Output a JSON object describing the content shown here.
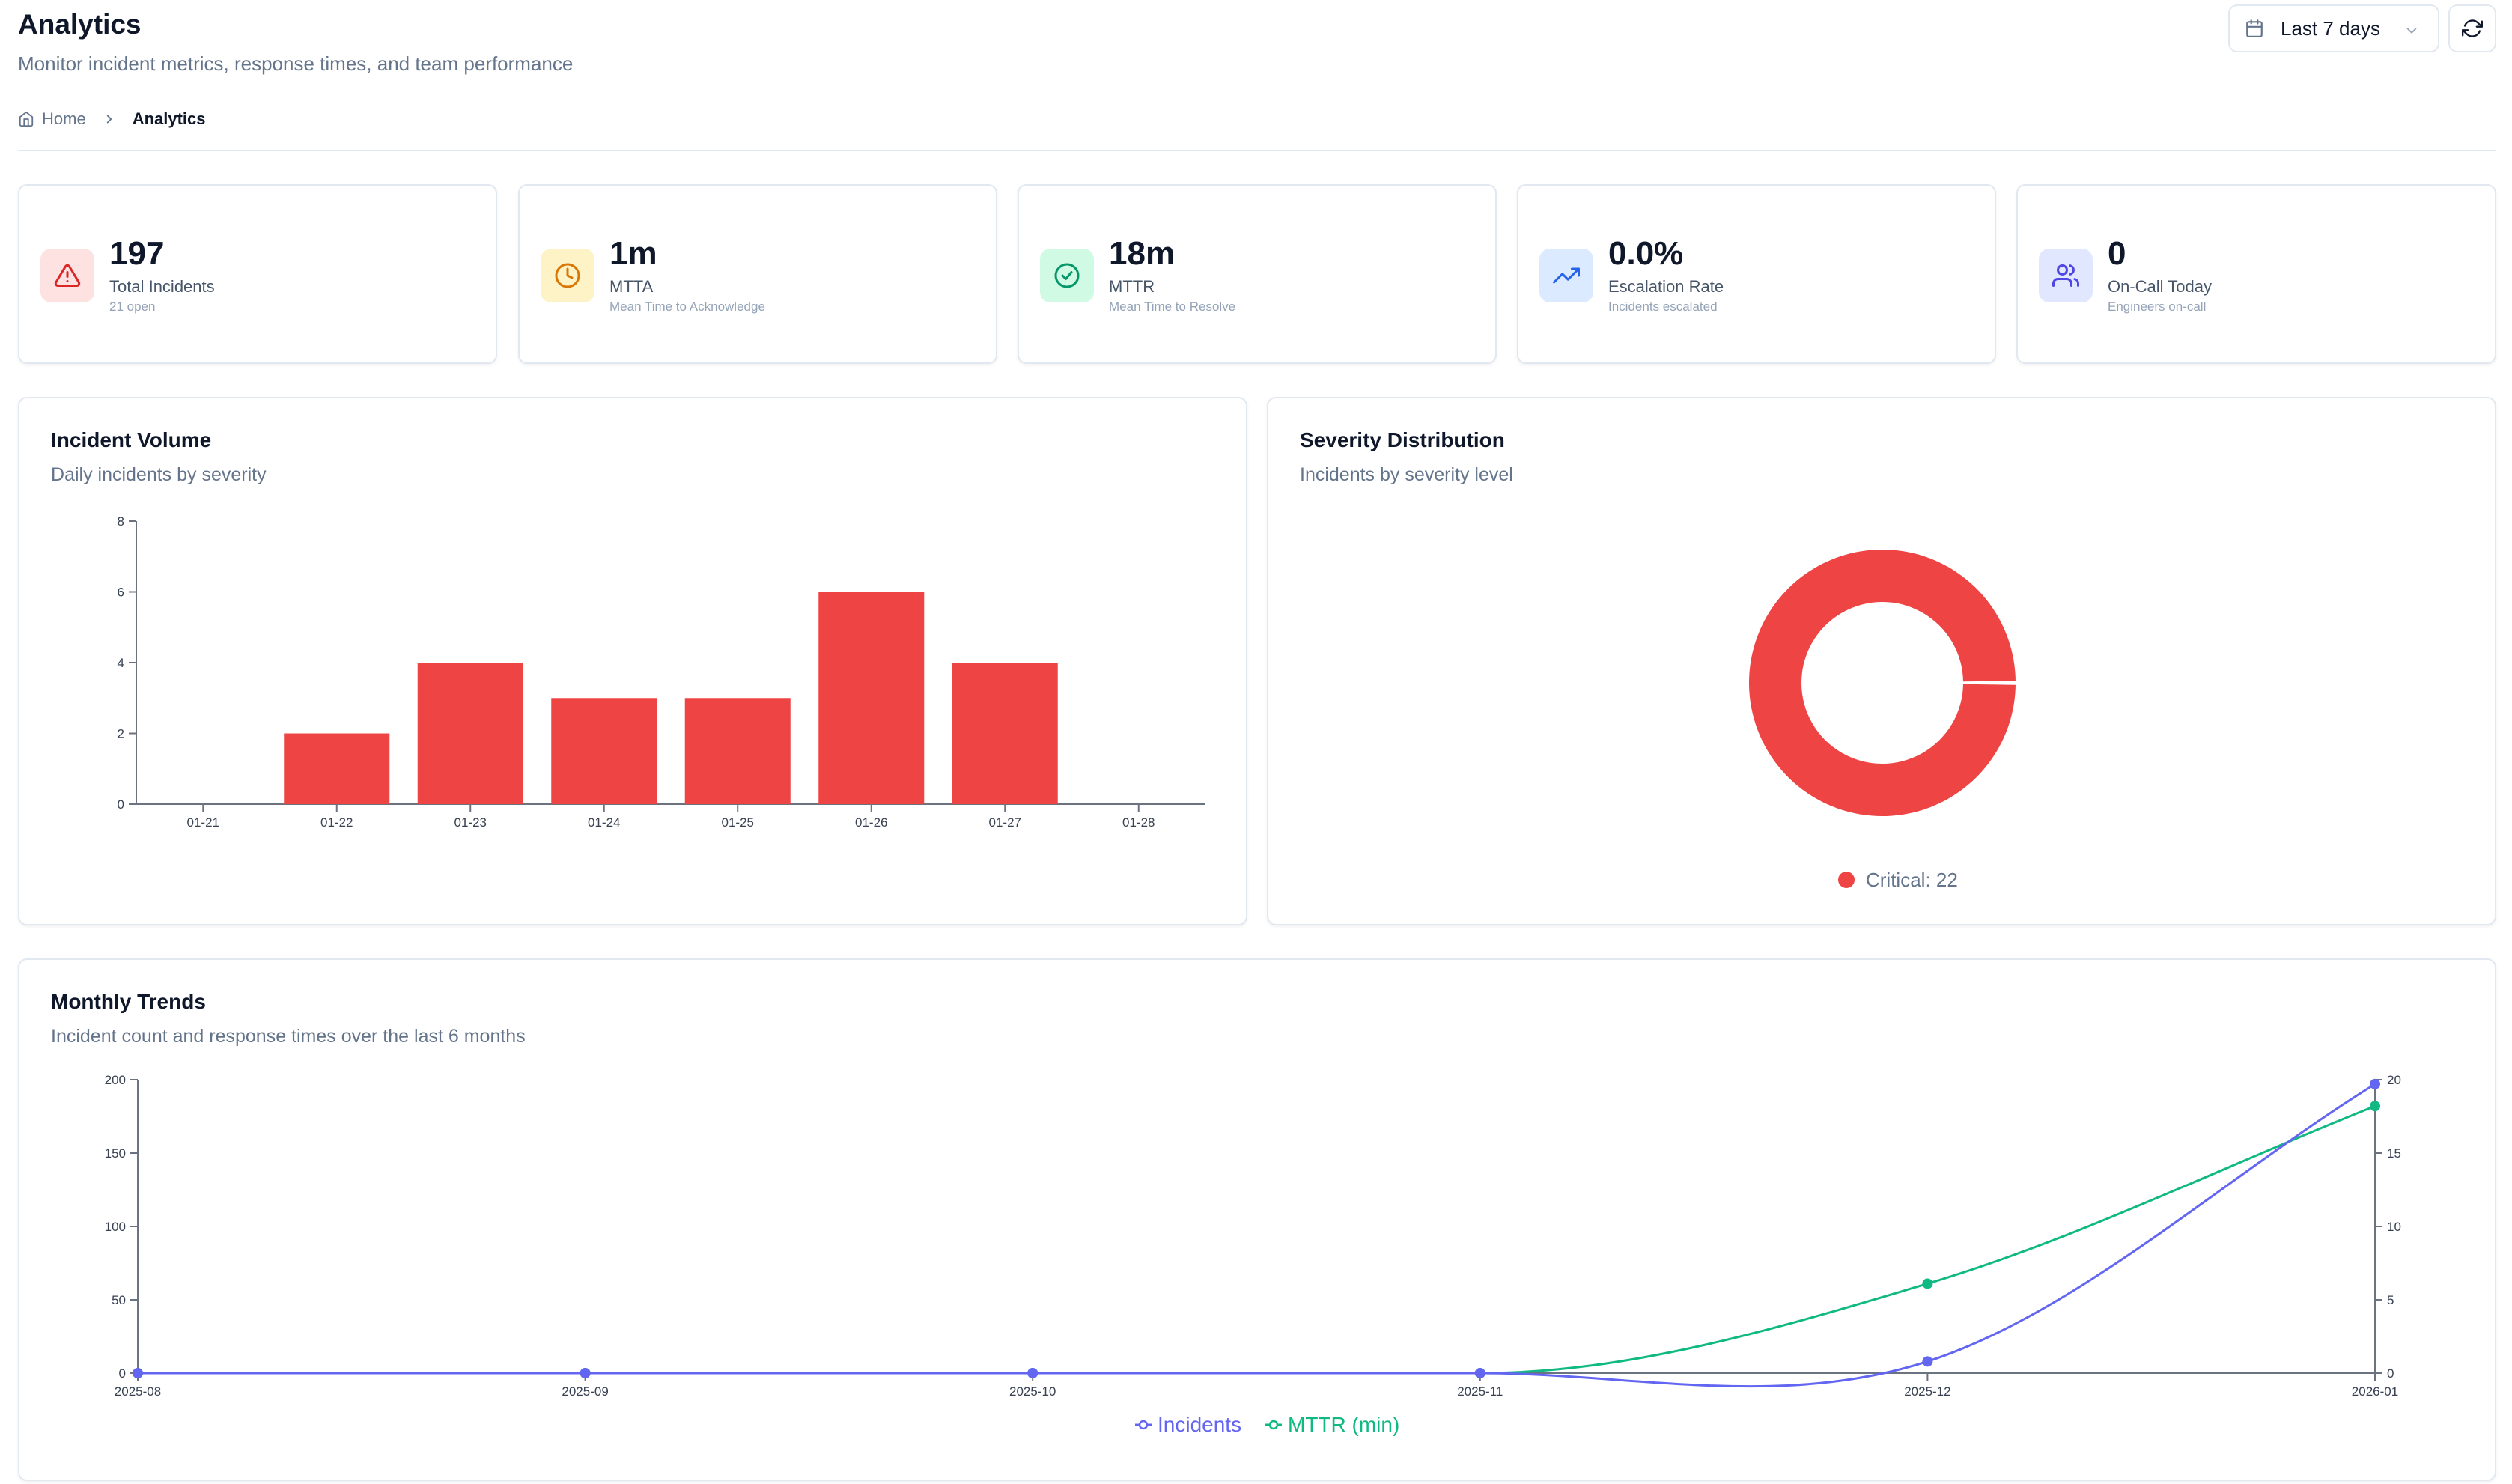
{
  "header": {
    "title": "Analytics",
    "subtitle": "Monitor incident metrics, response times, and team performance",
    "date_range": "Last 7 days"
  },
  "breadcrumb": {
    "home": "Home",
    "current": "Analytics"
  },
  "stats": [
    {
      "value": "197",
      "label": "Total Incidents",
      "sub": "21 open",
      "icon": "alert-triangle-icon",
      "color": "#dc2626",
      "bg": "#fee2e2"
    },
    {
      "value": "1m",
      "label": "MTTA",
      "sub": "Mean Time to Acknowledge",
      "icon": "clock-icon",
      "color": "#d97706",
      "bg": "#fef3c7"
    },
    {
      "value": "18m",
      "label": "MTTR",
      "sub": "Mean Time to Resolve",
      "icon": "check-circle-icon",
      "color": "#059669",
      "bg": "#d1fae5"
    },
    {
      "value": "0.0%",
      "label": "Escalation Rate",
      "sub": "Incidents escalated",
      "icon": "trending-up-icon",
      "color": "#2563eb",
      "bg": "#dbeafe"
    },
    {
      "value": "0",
      "label": "On-Call Today",
      "sub": "Engineers on-call",
      "icon": "users-icon",
      "color": "#4f46e5",
      "bg": "#e0e7ff"
    }
  ],
  "volume": {
    "title": "Incident Volume",
    "subtitle": "Daily incidents by severity"
  },
  "severity": {
    "title": "Severity Distribution",
    "subtitle": "Incidents by severity level",
    "legend": "Critical: 22"
  },
  "trends": {
    "title": "Monthly Trends",
    "subtitle": "Incident count and response times over the last 6 months"
  },
  "colors": {
    "critical": "#ef4444",
    "incidents": "#6366f1",
    "mttr": "#10b981"
  },
  "chart_data": [
    {
      "type": "bar",
      "categories": [
        "01-21",
        "01-22",
        "01-23",
        "01-24",
        "01-25",
        "01-26",
        "01-27",
        "01-28"
      ],
      "values": [
        0,
        2,
        4,
        3,
        3,
        6,
        4,
        0
      ],
      "ylim": [
        0,
        8
      ],
      "yticks": [
        0,
        2,
        4,
        6,
        8
      ]
    },
    {
      "type": "pie",
      "labels": [
        "Critical"
      ],
      "values": [
        22
      ],
      "legend_text": [
        "Critical: 22"
      ]
    },
    {
      "type": "line",
      "x": [
        "2025-08",
        "2025-09",
        "2025-10",
        "2025-11",
        "2025-12",
        "2026-01"
      ],
      "series": [
        {
          "name": "Incidents",
          "values": [
            0,
            0,
            0,
            0,
            8,
            197
          ]
        },
        {
          "name": "MTTR (min)",
          "values": [
            0,
            0,
            0,
            0,
            6.1,
            18.2
          ]
        }
      ],
      "ylim": [
        0,
        200
      ],
      "yticks": [
        0,
        50,
        100,
        150,
        200
      ],
      "y2lim": [
        0,
        20
      ],
      "y2ticks": [
        0,
        5,
        10,
        15,
        20
      ]
    }
  ]
}
